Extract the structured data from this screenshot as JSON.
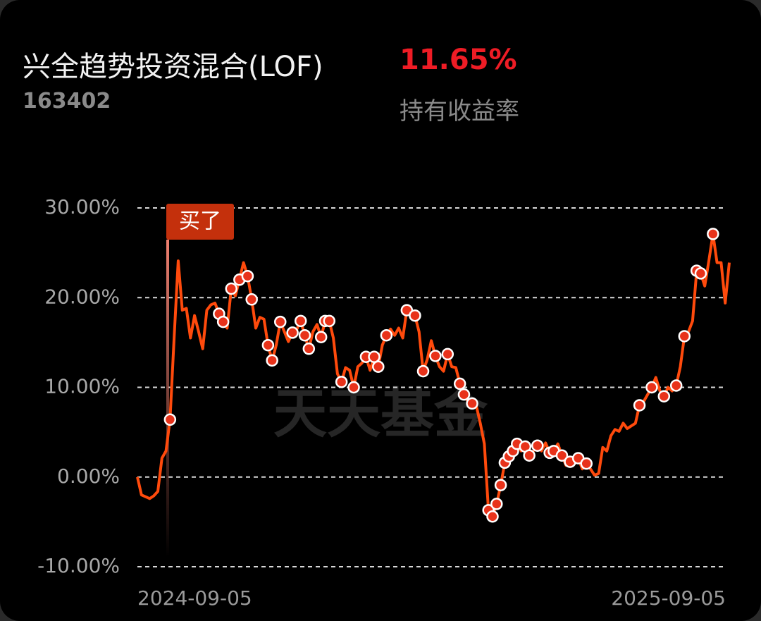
{
  "header": {
    "fund_name": "兴全趋势投资混合(LOF)",
    "return": "11.65%",
    "code": "163402",
    "return_label": "持有收益率"
  },
  "chart_data": {
    "type": "line",
    "watermark": "天天基金",
    "annotation": "买了",
    "grid": true,
    "ylim": [
      -10,
      30
    ],
    "yticks": [
      {
        "value": -10,
        "label": "-10.00%"
      },
      {
        "value": 0,
        "label": "0.00%"
      },
      {
        "value": 10,
        "label": "10.00%"
      },
      {
        "value": 20,
        "label": "20.00%"
      },
      {
        "value": 30,
        "label": "30.00%"
      }
    ],
    "categories": [
      "2024-09-05",
      null,
      null,
      null,
      null,
      null,
      null,
      null,
      null,
      null,
      null,
      null,
      null,
      null,
      null,
      null,
      null,
      null,
      null,
      null,
      null,
      null,
      null,
      null,
      null,
      null,
      null,
      null,
      null,
      null,
      null,
      null,
      null,
      null,
      null,
      null,
      null,
      null,
      null,
      null,
      null,
      null,
      null,
      null,
      null,
      null,
      null,
      null,
      null,
      null,
      null,
      null,
      null,
      null,
      null,
      null,
      null,
      null,
      null,
      null,
      null,
      null,
      null,
      null,
      null,
      null,
      null,
      null,
      null,
      null,
      null,
      null,
      null,
      null,
      null,
      null,
      null,
      null,
      null,
      null,
      null,
      null,
      null,
      null,
      null,
      null,
      null,
      null,
      null,
      null,
      null,
      null,
      null,
      null,
      null,
      null,
      null,
      null,
      null,
      null,
      null,
      null,
      null,
      null,
      null,
      null,
      null,
      null,
      null,
      null,
      null,
      null,
      null,
      null,
      null,
      null,
      null,
      null,
      null,
      null,
      null,
      null,
      null,
      null,
      null,
      null,
      null,
      null,
      null,
      null,
      null,
      null,
      null,
      null,
      null,
      null,
      null,
      null,
      null,
      null,
      null,
      null,
      null,
      null,
      null,
      "2025-09-05"
    ],
    "color": "#ff4a0c",
    "marker_color": "#e8321a",
    "values": [
      0,
      -2.0,
      -2.2,
      -2.4,
      -2.1,
      -1.6,
      2.1,
      2.9,
      6.4,
      15.5,
      24.1,
      18.6,
      18.8,
      15.5,
      18.0,
      16.2,
      14.3,
      18.6,
      19.2,
      19.4,
      18.2,
      17.3,
      16.6,
      21.0,
      20.2,
      22.0,
      23.9,
      22.4,
      19.8,
      16.6,
      17.8,
      17.6,
      14.7,
      13.0,
      14.7,
      17.3,
      16.2,
      15.1,
      16.1,
      16.4,
      17.4,
      15.8,
      14.3,
      16.2,
      17.0,
      15.6,
      17.4,
      17.4,
      15.5,
      11.5,
      10.6,
      12.2,
      11.9,
      10.0,
      12.3,
      12.7,
      13.4,
      11.9,
      13.4,
      12.3,
      14.7,
      15.8,
      16.5,
      15.8,
      16.6,
      15.5,
      18.6,
      18.2,
      18.0,
      16.2,
      11.8,
      13.1,
      15.2,
      13.5,
      12.3,
      11.8,
      13.7,
      12.3,
      12.2,
      10.4,
      9.2,
      8.4,
      8.2,
      8.0,
      6.0,
      3.7,
      -3.7,
      -4.4,
      -3.0,
      -0.9,
      1.6,
      2.3,
      2.9,
      3.7,
      2.9,
      3.4,
      2.4,
      2.9,
      3.5,
      2.9,
      3.8,
      2.7,
      2.9,
      3.7,
      2.4,
      1.3,
      1.7,
      2.1,
      2.1,
      0.9,
      1.5,
      0.9,
      0.2,
      0.4,
      3.3,
      2.9,
      4.6,
      5.3,
      5.1,
      6.0,
      5.4,
      5.7,
      6.0,
      8.0,
      8.4,
      9.2,
      10.0,
      11.1,
      9.6,
      9.0,
      10.0,
      9.6,
      10.2,
      12.3,
      15.7,
      16.2,
      17.4,
      23.0,
      22.7,
      21.3,
      24.1,
      27.1,
      23.9,
      23.9,
      19.4,
      23.9
    ],
    "markers": [
      null,
      null,
      null,
      null,
      null,
      null,
      null,
      null,
      6.4,
      null,
      null,
      null,
      null,
      null,
      null,
      null,
      null,
      null,
      null,
      null,
      18.2,
      17.3,
      null,
      21.0,
      null,
      22.0,
      null,
      22.4,
      19.8,
      null,
      null,
      null,
      14.7,
      13.0,
      null,
      17.3,
      null,
      null,
      16.1,
      null,
      17.4,
      15.8,
      14.3,
      null,
      null,
      15.6,
      17.4,
      17.4,
      null,
      null,
      10.6,
      null,
      null,
      10.0,
      null,
      null,
      13.4,
      null,
      13.4,
      12.3,
      null,
      15.8,
      null,
      null,
      null,
      null,
      18.6,
      null,
      18.0,
      null,
      11.8,
      null,
      null,
      13.5,
      null,
      null,
      13.7,
      null,
      null,
      10.4,
      9.2,
      null,
      8.2,
      null,
      null,
      null,
      -3.7,
      -4.4,
      -3.0,
      -0.9,
      1.6,
      2.3,
      2.9,
      3.7,
      null,
      3.4,
      2.4,
      null,
      3.5,
      null,
      null,
      2.7,
      2.9,
      null,
      2.4,
      null,
      1.7,
      null,
      2.1,
      null,
      1.5,
      null,
      null,
      null,
      null,
      null,
      null,
      null,
      null,
      null,
      null,
      null,
      null,
      8.0,
      null,
      null,
      10.0,
      null,
      null,
      9.0,
      null,
      null,
      10.2,
      null,
      15.7,
      null,
      null,
      23.0,
      22.7,
      null,
      null,
      27.1,
      null,
      null,
      null,
      null
    ]
  }
}
